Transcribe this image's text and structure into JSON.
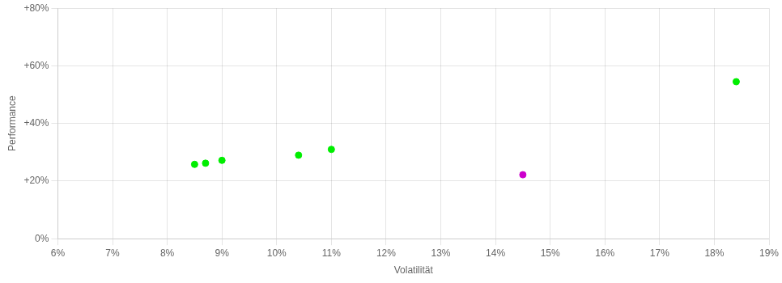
{
  "chart_data": {
    "type": "scatter",
    "xlabel": "Volatilität",
    "ylabel": "Performance",
    "xlim": [
      0.06,
      0.19
    ],
    "ylim": [
      0.0,
      0.8
    ],
    "xticks": [
      {
        "value": 0.06,
        "label": "6%"
      },
      {
        "value": 0.07,
        "label": "7%"
      },
      {
        "value": 0.08,
        "label": "8%"
      },
      {
        "value": 0.09,
        "label": "9%"
      },
      {
        "value": 0.1,
        "label": "10%"
      },
      {
        "value": 0.11,
        "label": "11%"
      },
      {
        "value": 0.12,
        "label": "12%"
      },
      {
        "value": 0.13,
        "label": "13%"
      },
      {
        "value": 0.14,
        "label": "14%"
      },
      {
        "value": 0.15,
        "label": "15%"
      },
      {
        "value": 0.16,
        "label": "16%"
      },
      {
        "value": 0.17,
        "label": "17%"
      },
      {
        "value": 0.18,
        "label": "18%"
      },
      {
        "value": 0.19,
        "label": "19%"
      }
    ],
    "yticks": [
      {
        "value": 0.0,
        "label": "0%"
      },
      {
        "value": 0.2,
        "label": "+20%"
      },
      {
        "value": 0.4,
        "label": "+40%"
      },
      {
        "value": 0.6,
        "label": "+60%"
      },
      {
        "value": 0.8,
        "label": "+80%"
      }
    ],
    "grid": true,
    "series": [
      {
        "color": "#00ee00",
        "x": [
          0.085,
          0.087,
          0.09,
          0.104,
          0.11,
          0.184
        ],
        "values": [
          0.258,
          0.262,
          0.272,
          0.29,
          0.31,
          0.545
        ]
      },
      {
        "color": "#cc00cc",
        "x": [
          0.145
        ],
        "values": [
          0.222
        ]
      }
    ]
  }
}
